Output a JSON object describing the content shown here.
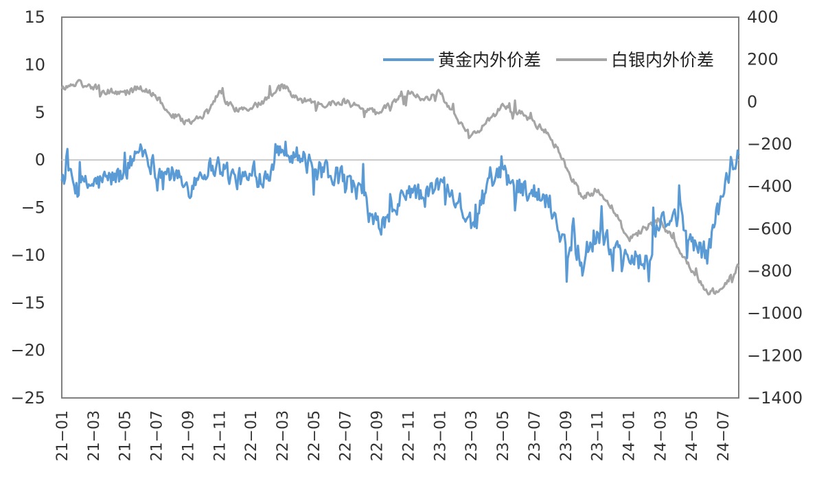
{
  "chart_data": {
    "type": "line",
    "title": "",
    "xlabel": "",
    "ylabel": "",
    "x_ticks": [
      "21-01",
      "21-03",
      "21-05",
      "21-07",
      "21-09",
      "21-11",
      "22-01",
      "22-03",
      "22-05",
      "22-07",
      "22-09",
      "22-11",
      "23-01",
      "23-03",
      "23-05",
      "23-07",
      "23-09",
      "23-11",
      "24-01",
      "24-03",
      "24-05",
      "24-07"
    ],
    "x_start": "2021-01",
    "x_end": "2024-08",
    "y_left": {
      "min": -25,
      "max": 15,
      "ticks": [
        15,
        10,
        5,
        0,
        -5,
        -10,
        -15,
        -20,
        -25
      ]
    },
    "y_right": {
      "min": -1400,
      "max": 400,
      "ticks": [
        400,
        200,
        0,
        -200,
        -400,
        -600,
        -800,
        -1000,
        -1200,
        -1400
      ]
    },
    "legend_position": "top-right",
    "grid": false,
    "series": [
      {
        "name": "黄金内外价差",
        "axis": "left",
        "color": "#5b9bd5",
        "x": [
          "2021-01",
          "2021-02",
          "2021-03",
          "2021-04",
          "2021-05",
          "2021-06",
          "2021-07",
          "2021-08",
          "2021-09",
          "2021-10",
          "2021-11",
          "2021-12",
          "2022-01",
          "2022-02",
          "2022-03",
          "2022-04",
          "2022-05",
          "2022-06",
          "2022-07",
          "2022-08",
          "2022-09",
          "2022-10",
          "2022-11",
          "2022-12",
          "2023-01",
          "2023-02",
          "2023-03",
          "2023-04",
          "2023-05",
          "2023-06",
          "2023-07",
          "2023-08",
          "2023-09",
          "2023-10",
          "2023-11",
          "2023-12",
          "2024-01",
          "2024-02",
          "2024-03",
          "2024-04",
          "2024-05",
          "2024-06",
          "2024-07",
          "2024-08"
        ],
        "values": [
          -1.5,
          -3.0,
          -2.5,
          -2.0,
          -1.5,
          1.5,
          -1.0,
          -1.5,
          -3.0,
          -1.0,
          -0.5,
          -2.0,
          -2.0,
          -1.5,
          1.5,
          0.5,
          -1.0,
          -1.5,
          -2.0,
          -3.5,
          -7.0,
          -6.0,
          -3.0,
          -4.0,
          -2.5,
          -3.5,
          -7.0,
          -3.0,
          -1.5,
          -2.5,
          -3.5,
          -4.5,
          -9.0,
          -10.0,
          -8.0,
          -9.0,
          -10.0,
          -11.0,
          -7.0,
          -6.0,
          -8.5,
          -10.0,
          -3.0,
          0.5
        ]
      },
      {
        "name": "白银内外价差",
        "axis": "right",
        "color": "#a5a5a5",
        "x": [
          "2021-01",
          "2021-02",
          "2021-03",
          "2021-04",
          "2021-05",
          "2021-06",
          "2021-07",
          "2021-08",
          "2021-09",
          "2021-10",
          "2021-11",
          "2021-12",
          "2022-01",
          "2022-02",
          "2022-03",
          "2022-04",
          "2022-05",
          "2022-06",
          "2022-07",
          "2022-08",
          "2022-09",
          "2022-10",
          "2022-11",
          "2022-12",
          "2023-01",
          "2023-02",
          "2023-03",
          "2023-04",
          "2023-05",
          "2023-06",
          "2023-07",
          "2023-08",
          "2023-09",
          "2023-10",
          "2023-11",
          "2023-12",
          "2024-01",
          "2024-02",
          "2024-03",
          "2024-04",
          "2024-05",
          "2024-06",
          "2024-07",
          "2024-08"
        ],
        "values": [
          60,
          90,
          70,
          50,
          40,
          70,
          30,
          -60,
          -100,
          -60,
          40,
          -40,
          -30,
          10,
          80,
          10,
          0,
          -10,
          0,
          -30,
          -50,
          0,
          50,
          0,
          50,
          -80,
          -160,
          -100,
          -20,
          -40,
          -100,
          -160,
          -300,
          -450,
          -420,
          -500,
          -650,
          -600,
          -550,
          -680,
          -800,
          -900,
          -880,
          -780
        ]
      }
    ]
  }
}
